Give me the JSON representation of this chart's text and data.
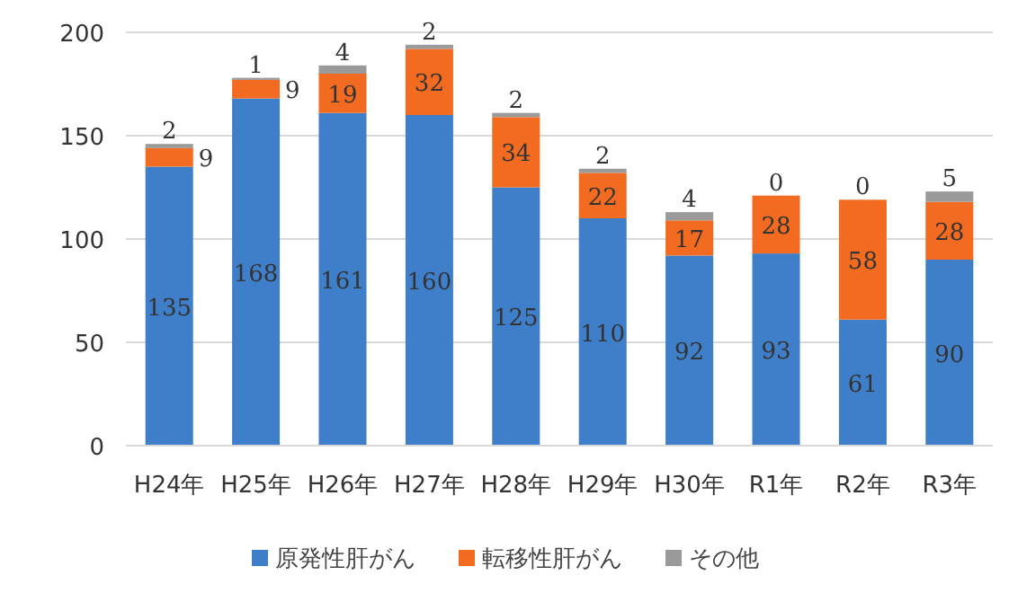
{
  "chart_data": {
    "type": "bar",
    "stacked": true,
    "categories": [
      "H24年",
      "H25年",
      "H26年",
      "H27年",
      "H28年",
      "H29年",
      "H30年",
      "R1年",
      "R2年",
      "R3年"
    ],
    "series": [
      {
        "name": "原発性肝がん",
        "color": "#3f7fc9",
        "values": [
          135,
          168,
          161,
          160,
          125,
          110,
          92,
          93,
          61,
          90
        ]
      },
      {
        "name": "転移性肝がん",
        "color": "#f26b21",
        "values": [
          9,
          9,
          19,
          32,
          34,
          22,
          17,
          28,
          58,
          28
        ]
      },
      {
        "name": "その他",
        "color": "#9a9a9a",
        "values": [
          2,
          1,
          4,
          2,
          2,
          2,
          4,
          0,
          0,
          5
        ]
      }
    ],
    "ylim": [
      0,
      200
    ],
    "yticks": [
      0,
      50,
      100,
      150,
      200
    ],
    "grid": "y",
    "legend": "bottom",
    "data_labels": true
  }
}
